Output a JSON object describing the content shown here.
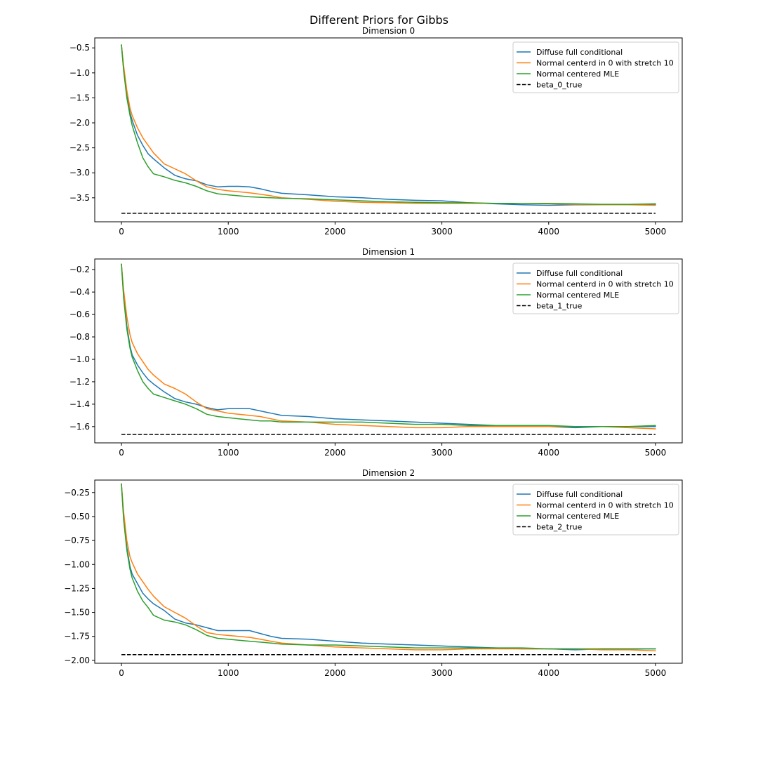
{
  "figure": {
    "title": "Different Priors for Gibbs"
  },
  "colors": {
    "diffuse": "#1f77b4",
    "normal_zero": "#ff7f0e",
    "normal_mle": "#2ca02c",
    "true_value": "#000000"
  },
  "chart_data": [
    {
      "type": "line",
      "title": "Dimension 0",
      "xlabel": "",
      "ylabel": "",
      "xlim": [
        -250,
        5250
      ],
      "ylim": [
        -3.98,
        -0.3
      ],
      "xticks": [
        0,
        1000,
        2000,
        3000,
        4000,
        5000
      ],
      "xtick_labels": [
        "0",
        "1000",
        "2000",
        "3000",
        "4000",
        "5000"
      ],
      "yticks": [
        -0.5,
        -1.0,
        -1.5,
        -2.0,
        -2.5,
        -3.0,
        -3.5
      ],
      "ytick_labels": [
        "−0.5",
        "−1.0",
        "−1.5",
        "−2.0",
        "−2.5",
        "−3.0",
        "−3.5"
      ],
      "grid": false,
      "legend_position": "top-right",
      "series": [
        {
          "name": "Diffuse full conditional",
          "color": "#1f77b4",
          "style": "solid",
          "x": [
            0,
            20,
            50,
            80,
            100,
            150,
            200,
            250,
            300,
            400,
            500,
            600,
            700,
            800,
            900,
            1000,
            1100,
            1200,
            1300,
            1400,
            1500,
            1750,
            2000,
            2250,
            2500,
            2750,
            3000,
            3250,
            3500,
            3750,
            4000,
            4250,
            4500,
            4750,
            5000
          ],
          "y": [
            -0.44,
            -0.9,
            -1.45,
            -1.8,
            -1.95,
            -2.25,
            -2.45,
            -2.62,
            -2.72,
            -2.9,
            -3.05,
            -3.12,
            -3.16,
            -3.24,
            -3.28,
            -3.27,
            -3.27,
            -3.28,
            -3.32,
            -3.37,
            -3.41,
            -3.44,
            -3.48,
            -3.5,
            -3.53,
            -3.55,
            -3.56,
            -3.6,
            -3.62,
            -3.64,
            -3.65,
            -3.64,
            -3.64,
            -3.64,
            -3.63
          ]
        },
        {
          "name": "Normal centerd in 0 with stretch 10",
          "color": "#ff7f0e",
          "style": "solid",
          "x": [
            0,
            20,
            50,
            80,
            100,
            150,
            200,
            250,
            300,
            400,
            500,
            600,
            700,
            800,
            900,
            1000,
            1100,
            1200,
            1300,
            1400,
            1500,
            1750,
            2000,
            2250,
            2500,
            2750,
            3000,
            3250,
            3500,
            3750,
            4000,
            4250,
            4500,
            4750,
            5000
          ],
          "y": [
            -0.44,
            -0.85,
            -1.35,
            -1.7,
            -1.85,
            -2.1,
            -2.3,
            -2.45,
            -2.6,
            -2.82,
            -2.92,
            -3.02,
            -3.16,
            -3.28,
            -3.33,
            -3.36,
            -3.38,
            -3.4,
            -3.43,
            -3.46,
            -3.5,
            -3.53,
            -3.57,
            -3.59,
            -3.6,
            -3.61,
            -3.61,
            -3.61,
            -3.61,
            -3.61,
            -3.62,
            -3.63,
            -3.64,
            -3.64,
            -3.65
          ]
        },
        {
          "name": "Normal centered MLE",
          "color": "#2ca02c",
          "style": "solid",
          "x": [
            0,
            20,
            50,
            80,
            100,
            150,
            200,
            250,
            300,
            400,
            500,
            600,
            700,
            800,
            900,
            1000,
            1100,
            1200,
            1300,
            1400,
            1500,
            1750,
            2000,
            2250,
            2500,
            2750,
            3000,
            3250,
            3500,
            3750,
            4000,
            4250,
            4500,
            4750,
            5000
          ],
          "y": [
            -0.44,
            -0.95,
            -1.5,
            -1.85,
            -2.05,
            -2.4,
            -2.7,
            -2.88,
            -3.02,
            -3.08,
            -3.15,
            -3.2,
            -3.27,
            -3.36,
            -3.42,
            -3.44,
            -3.46,
            -3.48,
            -3.49,
            -3.5,
            -3.51,
            -3.52,
            -3.54,
            -3.56,
            -3.58,
            -3.59,
            -3.6,
            -3.6,
            -3.61,
            -3.61,
            -3.61,
            -3.62,
            -3.63,
            -3.63,
            -3.62
          ]
        }
      ],
      "reference_line": {
        "name": "beta_0_true",
        "color": "#000000",
        "style": "dashed",
        "x": [
          0,
          5000
        ],
        "y": -3.81
      }
    },
    {
      "type": "line",
      "title": "Dimension 1",
      "xlabel": "",
      "ylabel": "",
      "xlim": [
        -250,
        5250
      ],
      "ylim": [
        -1.745,
        -0.105
      ],
      "xticks": [
        0,
        1000,
        2000,
        3000,
        4000,
        5000
      ],
      "xtick_labels": [
        "0",
        "1000",
        "2000",
        "3000",
        "4000",
        "5000"
      ],
      "yticks": [
        -0.2,
        -0.4,
        -0.6,
        -0.8,
        -1.0,
        -1.2,
        -1.4,
        -1.6
      ],
      "ytick_labels": [
        "−0.2",
        "−0.4",
        "−0.6",
        "−0.8",
        "−1.0",
        "−1.2",
        "−1.4",
        "−1.6"
      ],
      "grid": false,
      "legend_position": "top-right",
      "series": [
        {
          "name": "Diffuse full conditional",
          "color": "#1f77b4",
          "style": "solid",
          "x": [
            0,
            20,
            50,
            80,
            100,
            150,
            200,
            250,
            300,
            400,
            500,
            600,
            700,
            800,
            900,
            1000,
            1100,
            1200,
            1300,
            1400,
            1500,
            1750,
            2000,
            2250,
            2500,
            2750,
            3000,
            3250,
            3500,
            3750,
            4000,
            4250,
            4500,
            4750,
            5000
          ],
          "y": [
            -0.15,
            -0.42,
            -0.7,
            -0.88,
            -0.96,
            -1.05,
            -1.12,
            -1.18,
            -1.22,
            -1.29,
            -1.35,
            -1.38,
            -1.4,
            -1.43,
            -1.45,
            -1.44,
            -1.44,
            -1.44,
            -1.46,
            -1.48,
            -1.5,
            -1.51,
            -1.53,
            -1.54,
            -1.55,
            -1.56,
            -1.57,
            -1.58,
            -1.59,
            -1.6,
            -1.6,
            -1.61,
            -1.6,
            -1.6,
            -1.6
          ]
        },
        {
          "name": "Normal centerd in 0 with stretch 10",
          "color": "#ff7f0e",
          "style": "solid",
          "x": [
            0,
            20,
            50,
            80,
            100,
            150,
            200,
            250,
            300,
            400,
            500,
            600,
            700,
            800,
            900,
            1000,
            1100,
            1200,
            1300,
            1400,
            1500,
            1750,
            2000,
            2250,
            2500,
            2750,
            3000,
            3250,
            3500,
            3750,
            4000,
            4250,
            4500,
            4750,
            5000
          ],
          "y": [
            -0.15,
            -0.38,
            -0.62,
            -0.78,
            -0.85,
            -0.95,
            -1.02,
            -1.09,
            -1.14,
            -1.22,
            -1.26,
            -1.31,
            -1.38,
            -1.44,
            -1.46,
            -1.48,
            -1.49,
            -1.5,
            -1.51,
            -1.53,
            -1.55,
            -1.56,
            -1.58,
            -1.59,
            -1.6,
            -1.61,
            -1.61,
            -1.6,
            -1.6,
            -1.6,
            -1.6,
            -1.6,
            -1.6,
            -1.61,
            -1.62
          ]
        },
        {
          "name": "Normal centered MLE",
          "color": "#2ca02c",
          "style": "solid",
          "x": [
            0,
            20,
            50,
            80,
            100,
            150,
            200,
            250,
            300,
            400,
            500,
            600,
            700,
            800,
            900,
            1000,
            1100,
            1200,
            1300,
            1400,
            1500,
            1750,
            2000,
            2250,
            2500,
            2750,
            3000,
            3250,
            3500,
            3750,
            4000,
            4250,
            4500,
            4750,
            5000
          ],
          "y": [
            -0.15,
            -0.45,
            -0.73,
            -0.9,
            -0.98,
            -1.1,
            -1.2,
            -1.26,
            -1.31,
            -1.34,
            -1.37,
            -1.4,
            -1.44,
            -1.49,
            -1.51,
            -1.52,
            -1.53,
            -1.54,
            -1.55,
            -1.55,
            -1.56,
            -1.56,
            -1.56,
            -1.56,
            -1.57,
            -1.58,
            -1.58,
            -1.59,
            -1.59,
            -1.59,
            -1.59,
            -1.6,
            -1.6,
            -1.6,
            -1.59
          ]
        }
      ],
      "reference_line": {
        "name": "beta_1_true",
        "color": "#000000",
        "style": "dashed",
        "x": [
          0,
          5000
        ],
        "y": -1.67
      }
    },
    {
      "type": "line",
      "title": "Dimension 2",
      "xlabel": "",
      "ylabel": "",
      "xlim": [
        -250,
        5250
      ],
      "ylim": [
        -2.03,
        -0.12
      ],
      "xticks": [
        0,
        1000,
        2000,
        3000,
        4000,
        5000
      ],
      "xtick_labels": [
        "0",
        "1000",
        "2000",
        "3000",
        "4000",
        "5000"
      ],
      "yticks": [
        -0.25,
        -0.5,
        -0.75,
        -1.0,
        -1.25,
        -1.5,
        -1.75,
        -2.0
      ],
      "ytick_labels": [
        "−0.25",
        "−0.50",
        "−0.75",
        "−1.00",
        "−1.25",
        "−1.50",
        "−1.75",
        "−2.00"
      ],
      "grid": false,
      "legend_position": "top-right",
      "series": [
        {
          "name": "Diffuse full conditional",
          "color": "#1f77b4",
          "style": "solid",
          "x": [
            0,
            20,
            50,
            80,
            100,
            150,
            200,
            250,
            300,
            400,
            500,
            600,
            700,
            800,
            900,
            1000,
            1100,
            1200,
            1300,
            1400,
            1500,
            1750,
            2000,
            2250,
            2500,
            2750,
            3000,
            3250,
            3500,
            3750,
            4000,
            4250,
            4500,
            4750,
            5000
          ],
          "y": [
            -0.16,
            -0.5,
            -0.82,
            -1.02,
            -1.1,
            -1.2,
            -1.3,
            -1.36,
            -1.41,
            -1.48,
            -1.57,
            -1.61,
            -1.63,
            -1.66,
            -1.69,
            -1.69,
            -1.69,
            -1.69,
            -1.72,
            -1.75,
            -1.77,
            -1.78,
            -1.8,
            -1.82,
            -1.83,
            -1.84,
            -1.85,
            -1.86,
            -1.87,
            -1.88,
            -1.88,
            -1.89,
            -1.88,
            -1.88,
            -1.88
          ]
        },
        {
          "name": "Normal centerd in 0 with stretch 10",
          "color": "#ff7f0e",
          "style": "solid",
          "x": [
            0,
            20,
            50,
            80,
            100,
            150,
            200,
            250,
            300,
            400,
            500,
            600,
            700,
            800,
            900,
            1000,
            1100,
            1200,
            1300,
            1400,
            1500,
            1750,
            2000,
            2250,
            2500,
            2750,
            3000,
            3250,
            3500,
            3750,
            4000,
            4250,
            4500,
            4750,
            5000
          ],
          "y": [
            -0.16,
            -0.45,
            -0.75,
            -0.92,
            -0.98,
            -1.1,
            -1.18,
            -1.26,
            -1.33,
            -1.44,
            -1.5,
            -1.56,
            -1.64,
            -1.71,
            -1.73,
            -1.74,
            -1.75,
            -1.76,
            -1.78,
            -1.8,
            -1.82,
            -1.84,
            -1.86,
            -1.87,
            -1.88,
            -1.89,
            -1.89,
            -1.88,
            -1.88,
            -1.88,
            -1.88,
            -1.88,
            -1.89,
            -1.89,
            -1.9
          ]
        },
        {
          "name": "Normal centered MLE",
          "color": "#2ca02c",
          "style": "solid",
          "x": [
            0,
            20,
            50,
            80,
            100,
            150,
            200,
            250,
            300,
            400,
            500,
            600,
            700,
            800,
            900,
            1000,
            1100,
            1200,
            1300,
            1400,
            1500,
            1750,
            2000,
            2250,
            2500,
            2750,
            3000,
            3250,
            3500,
            3750,
            4000,
            4250,
            4500,
            4750,
            5000
          ],
          "y": [
            -0.16,
            -0.53,
            -0.85,
            -1.05,
            -1.14,
            -1.28,
            -1.38,
            -1.45,
            -1.53,
            -1.58,
            -1.6,
            -1.63,
            -1.68,
            -1.74,
            -1.77,
            -1.78,
            -1.79,
            -1.8,
            -1.81,
            -1.82,
            -1.83,
            -1.84,
            -1.84,
            -1.85,
            -1.86,
            -1.87,
            -1.87,
            -1.87,
            -1.87,
            -1.87,
            -1.88,
            -1.88,
            -1.88,
            -1.88,
            -1.88
          ]
        }
      ],
      "reference_line": {
        "name": "beta_2_true",
        "color": "#000000",
        "style": "dashed",
        "x": [
          0,
          5000
        ],
        "y": -1.94
      }
    }
  ]
}
